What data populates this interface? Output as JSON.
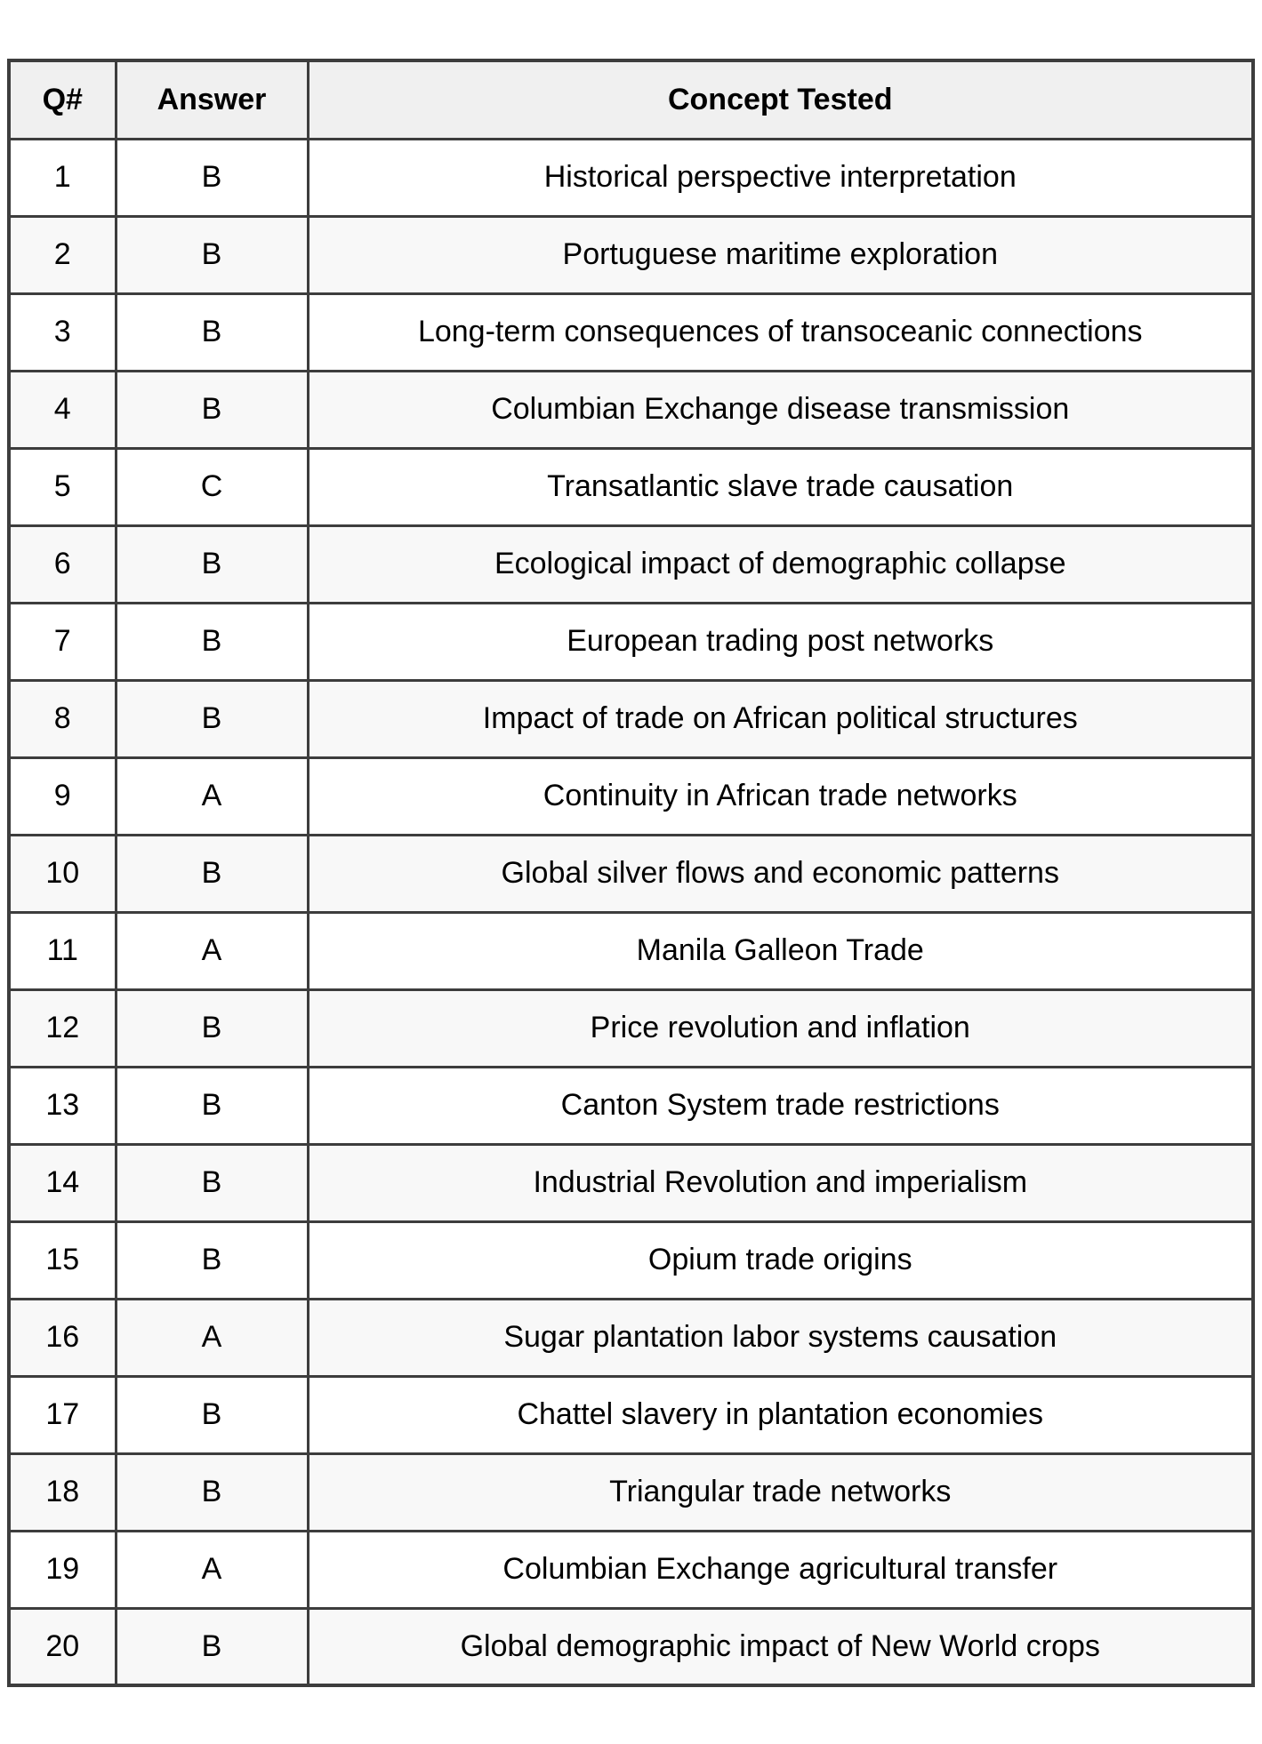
{
  "table": {
    "headers": [
      "Q#",
      "Answer",
      "Concept Tested"
    ],
    "rows": [
      {
        "q": "1",
        "answer": "B",
        "concept": "Historical perspective interpretation"
      },
      {
        "q": "2",
        "answer": "B",
        "concept": "Portuguese maritime exploration"
      },
      {
        "q": "3",
        "answer": "B",
        "concept": "Long-term consequences of transoceanic connections"
      },
      {
        "q": "4",
        "answer": "B",
        "concept": "Columbian Exchange disease transmission"
      },
      {
        "q": "5",
        "answer": "C",
        "concept": "Transatlantic slave trade causation"
      },
      {
        "q": "6",
        "answer": "B",
        "concept": "Ecological impact of demographic collapse"
      },
      {
        "q": "7",
        "answer": "B",
        "concept": "European trading post networks"
      },
      {
        "q": "8",
        "answer": "B",
        "concept": "Impact of trade on African political structures"
      },
      {
        "q": "9",
        "answer": "A",
        "concept": "Continuity in African trade networks"
      },
      {
        "q": "10",
        "answer": "B",
        "concept": "Global silver flows and economic patterns"
      },
      {
        "q": "11",
        "answer": "A",
        "concept": "Manila Galleon Trade"
      },
      {
        "q": "12",
        "answer": "B",
        "concept": "Price revolution and inflation"
      },
      {
        "q": "13",
        "answer": "B",
        "concept": "Canton System trade restrictions"
      },
      {
        "q": "14",
        "answer": "B",
        "concept": "Industrial Revolution and imperialism"
      },
      {
        "q": "15",
        "answer": "B",
        "concept": "Opium trade origins"
      },
      {
        "q": "16",
        "answer": "A",
        "concept": "Sugar plantation labor systems causation"
      },
      {
        "q": "17",
        "answer": "B",
        "concept": "Chattel slavery in plantation economies"
      },
      {
        "q": "18",
        "answer": "B",
        "concept": "Triangular trade networks"
      },
      {
        "q": "19",
        "answer": "A",
        "concept": "Columbian Exchange agricultural transfer"
      },
      {
        "q": "20",
        "answer": "B",
        "concept": "Global demographic impact of New World crops"
      }
    ]
  },
  "colors": {
    "border": "#3d3d3d",
    "header_bg": "#f0f0f0",
    "row_bg": "#ffffff",
    "row_alt_bg": "#f8f8f8",
    "text": "#000000"
  }
}
